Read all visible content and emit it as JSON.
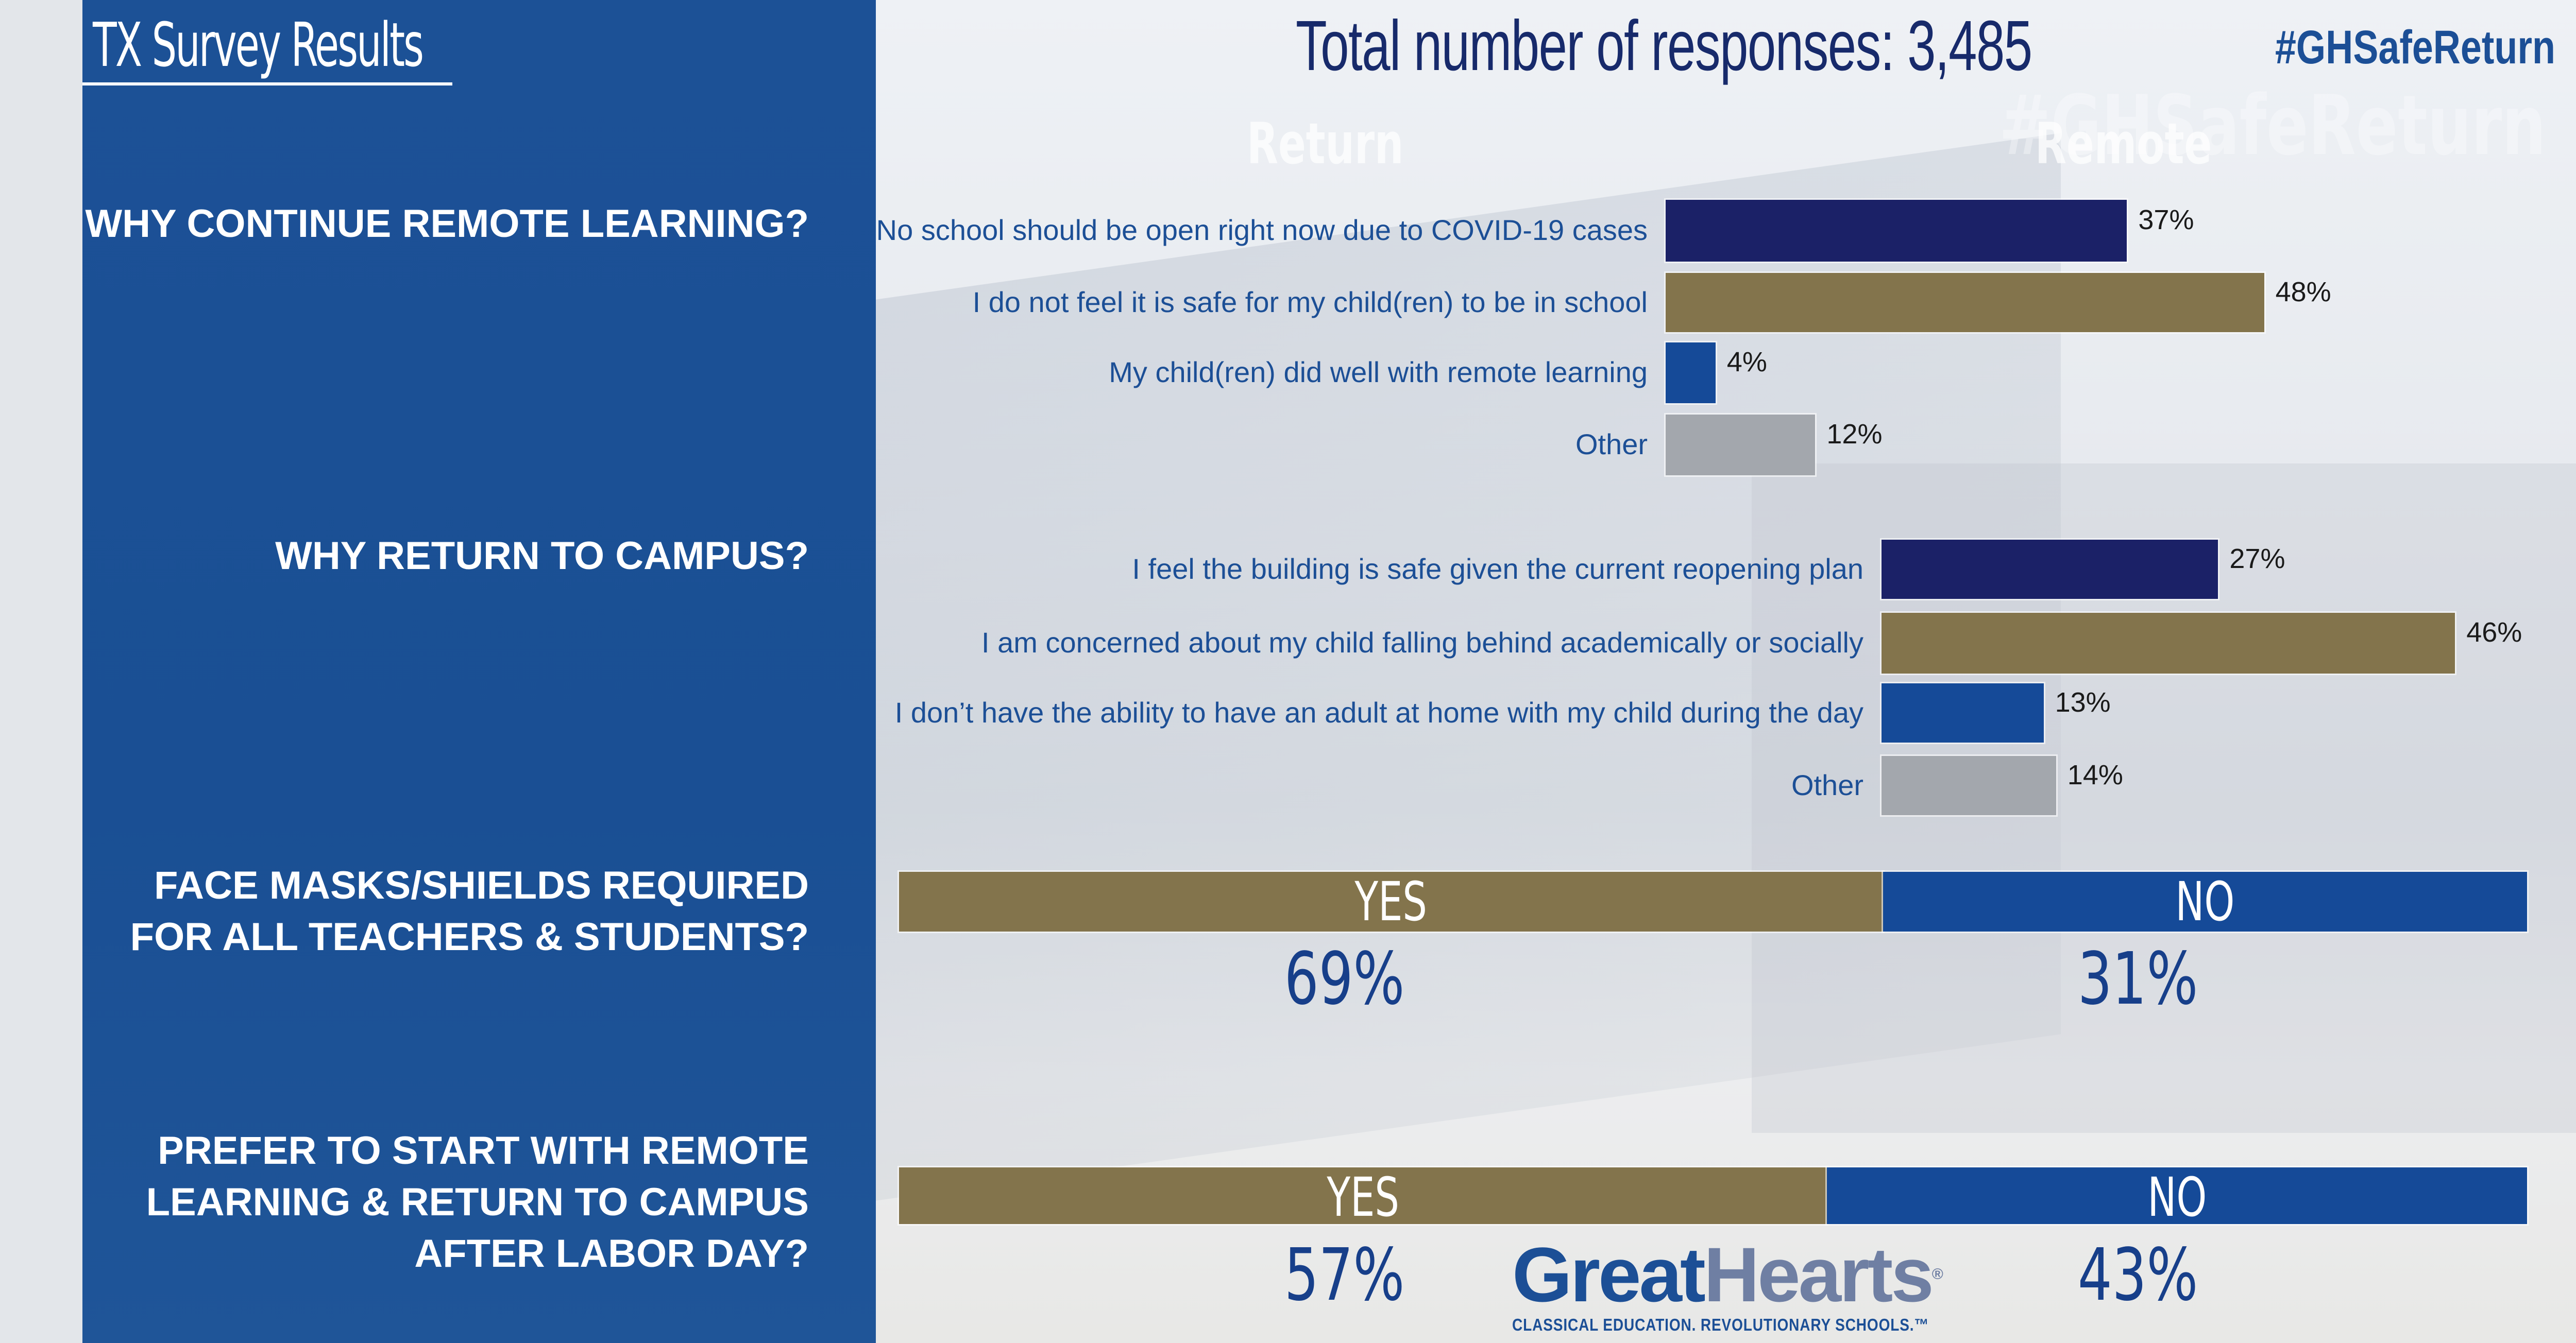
{
  "page": {
    "title": "TX Survey Results",
    "total_responses": "Total number of responses: 3,485",
    "hashtag": "#GHSafeReturn",
    "background_text": [
      "Return",
      "Remote",
      "#GHSafeReturn"
    ]
  },
  "questions": [
    {
      "label_lines": [
        "WHY CONTINUE REMOTE LEARNING?"
      ]
    },
    {
      "label_lines": [
        "WHY RETURN TO CAMPUS?"
      ]
    },
    {
      "label_lines": [
        "FACE MASKS/SHIELDS REQUIRED",
        "FOR ALL TEACHERS & STUDENTS?"
      ]
    },
    {
      "label_lines": [
        "PREFER TO START WITH REMOTE",
        "LEARNING & RETURN TO CAMPUS",
        "AFTER LABOR DAY?"
      ]
    }
  ],
  "colors": {
    "navy": "#1b2167",
    "gold": "#83744c",
    "blue": "#154a98",
    "gray": "#a3a7ad",
    "panel_blue": "#1c5196"
  },
  "chart_data": [
    {
      "type": "bar",
      "orientation": "horizontal",
      "title": "WHY CONTINUE REMOTE LEARNING?",
      "categories": [
        "No school should be open right now due to COVID-19 cases",
        "I do not feel it is safe for my child(ren) to be in school",
        "My child(ren) did well with remote learning",
        "Other"
      ],
      "values": [
        37,
        48,
        4,
        12
      ],
      "value_labels": [
        "37%",
        "48%",
        "4%",
        "12%"
      ],
      "bar_colors": [
        "#1b2167",
        "#83744c",
        "#154a98",
        "#a3a7ad"
      ],
      "unit": "%"
    },
    {
      "type": "bar",
      "orientation": "horizontal",
      "title": "WHY RETURN TO CAMPUS?",
      "categories": [
        "I feel the building is safe given the current reopening plan",
        "I am concerned about my child falling behind academically or socially",
        "I don’t have the ability to have an adult at home with my child during the day",
        "Other"
      ],
      "values": [
        27,
        46,
        13,
        14
      ],
      "value_labels": [
        "27%",
        "46%",
        "13%",
        "14%"
      ],
      "bar_colors": [
        "#1b2167",
        "#83744c",
        "#154a98",
        "#a3a7ad"
      ],
      "unit": "%"
    },
    {
      "type": "bar",
      "orientation": "horizontal-stacked",
      "title": "FACE MASKS/SHIELDS REQUIRED FOR ALL TEACHERS & STUDENTS?",
      "categories": [
        "YES",
        "NO"
      ],
      "values": [
        69,
        31
      ],
      "value_labels": [
        "69%",
        "31%"
      ],
      "bar_colors": [
        "#83744c",
        "#154a98"
      ],
      "unit": "%"
    },
    {
      "type": "bar",
      "orientation": "horizontal-stacked",
      "title": "PREFER TO START WITH REMOTE LEARNING & RETURN TO CAMPUS AFTER LABOR DAY?",
      "categories": [
        "YES",
        "NO"
      ],
      "values": [
        57,
        43
      ],
      "value_labels": [
        "57%",
        "43%"
      ],
      "bar_colors": [
        "#83744c",
        "#154a98"
      ],
      "unit": "%"
    }
  ],
  "logo": {
    "name_part1": "Great",
    "name_part2": "Hearts",
    "registered": "®",
    "tagline": "CLASSICAL EDUCATION. REVOLUTIONARY SCHOOLS.™"
  }
}
